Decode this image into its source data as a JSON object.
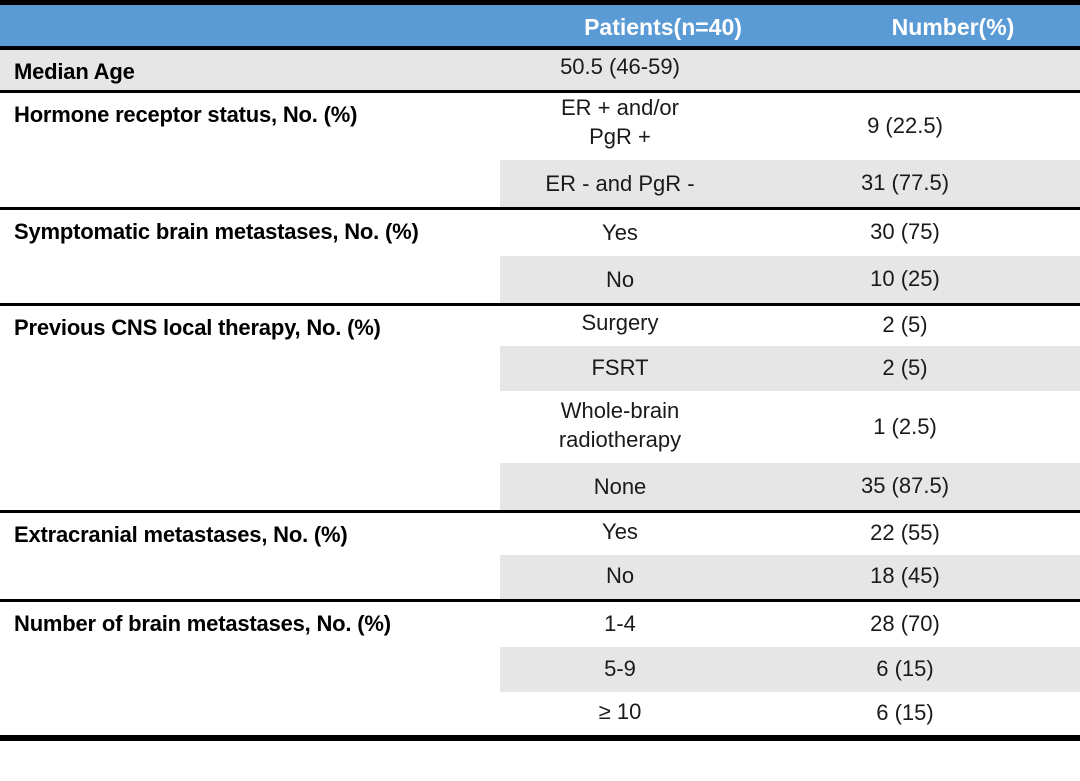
{
  "table": {
    "header": {
      "patients": "Patients(n=40)",
      "number": "Number(%)"
    },
    "groups": [
      {
        "label": "Median Age",
        "rows": [
          {
            "patients": "50.5 (46-59)",
            "number": ""
          }
        ]
      },
      {
        "label": "Hormone receptor status, No. (%)",
        "rows": [
          {
            "patients": "ER + and/or\nPgR +",
            "number": "9 (22.5)"
          },
          {
            "patients": "ER - and PgR -",
            "number": "31 (77.5)"
          }
        ]
      },
      {
        "label": "Symptomatic brain metastases, No. (%)",
        "rows": [
          {
            "patients": "Yes",
            "number": "30 (75)"
          },
          {
            "patients": "No",
            "number": "10 (25)"
          }
        ]
      },
      {
        "label": "Previous CNS local therapy, No. (%)",
        "rows": [
          {
            "patients": "Surgery",
            "number": "2 (5)"
          },
          {
            "patients": "FSRT",
            "number": "2 (5)"
          },
          {
            "patients": "Whole-brain\nradiotherapy",
            "number": "1 (2.5)"
          },
          {
            "patients": "None",
            "number": "35 (87.5)"
          }
        ]
      },
      {
        "label": "Extracranial metastases, No. (%)",
        "rows": [
          {
            "patients": "Yes",
            "number": "22 (55)"
          },
          {
            "patients": "No",
            "number": "18 (45)"
          }
        ]
      },
      {
        "label": "Number of brain metastases, No. (%)",
        "rows": [
          {
            "patients": "1-4",
            "number": "28 (70)"
          },
          {
            "patients": "5-9",
            "number": "6 (15)"
          },
          {
            "patients": "≥ 10",
            "number": "6 (15)"
          }
        ]
      }
    ],
    "colors": {
      "header_bg": "#5b9bd5",
      "header_text": "#ffffff",
      "row_shade": "#e7e6e6",
      "rule": "#000000"
    }
  }
}
